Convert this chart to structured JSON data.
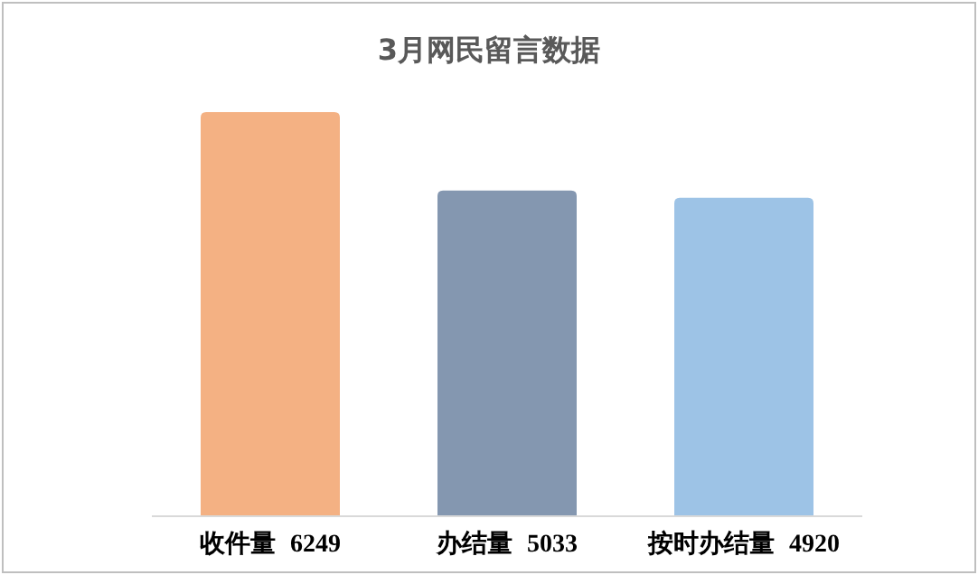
{
  "chart_data": {
    "type": "bar",
    "title": "3月网民留言数据",
    "categories": [
      "收件量",
      "办结量",
      "按时办结量"
    ],
    "values": [
      6249,
      5033,
      4920
    ],
    "data_labels": true,
    "colors": [
      "#f4b183",
      "#8497b0",
      "#9dc3e6"
    ]
  }
}
